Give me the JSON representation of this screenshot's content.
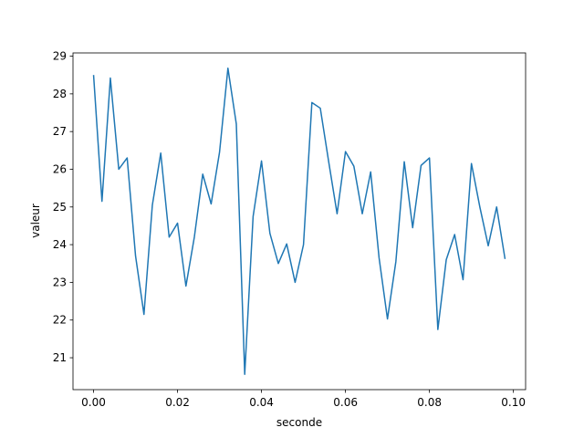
{
  "chart_data": {
    "type": "line",
    "x_label": "seconde",
    "y_label": "valeur",
    "x": [
      0,
      0.002,
      0.004,
      0.006,
      0.008,
      0.01,
      0.012,
      0.014,
      0.016,
      0.018,
      0.02,
      0.022,
      0.024,
      0.026,
      0.028,
      0.03,
      0.032,
      0.034,
      0.036,
      0.038,
      0.04,
      0.042,
      0.044,
      0.046,
      0.048,
      0.05,
      0.052,
      0.054,
      0.056,
      0.058,
      0.06,
      0.062,
      0.064,
      0.066,
      0.068,
      0.07,
      0.072,
      0.074,
      0.076,
      0.078,
      0.08,
      0.082,
      0.084,
      0.086,
      0.088,
      0.09,
      0.092,
      0.094,
      0.096,
      0.098
    ],
    "series": [
      {
        "color": "#1f77b4",
        "values": [
          28.5,
          25.15,
          28.42,
          26.0,
          26.3,
          23.7,
          22.15,
          25.05,
          26.43,
          24.2,
          24.57,
          22.9,
          24.2,
          25.87,
          25.08,
          26.45,
          28.68,
          27.2,
          20.56,
          24.75,
          26.22,
          24.3,
          23.5,
          24.02,
          23.0,
          24.0,
          27.77,
          27.62,
          26.2,
          24.82,
          26.47,
          26.08,
          24.82,
          25.93,
          23.65,
          22.03,
          23.55,
          26.2,
          24.45,
          26.1,
          26.3,
          21.75,
          23.6,
          24.27,
          23.07,
          26.15,
          25.0,
          23.97,
          25.0,
          23.62
        ]
      }
    ],
    "xlim": [
      -0.0049,
      0.1029
    ],
    "xticks": [
      {
        "value": 0,
        "label": "0.00"
      },
      {
        "value": 0.02,
        "label": "0.02"
      },
      {
        "value": 0.04,
        "label": "0.04"
      },
      {
        "value": 0.06,
        "label": "0.06"
      },
      {
        "value": 0.08,
        "label": "0.08"
      },
      {
        "value": 0.1,
        "label": "0.10"
      }
    ],
    "ylim": [
      20.154,
      29.086
    ],
    "yticks": [
      21,
      22,
      23,
      24,
      25,
      26,
      27,
      28,
      29
    ],
    "grid": false
  }
}
